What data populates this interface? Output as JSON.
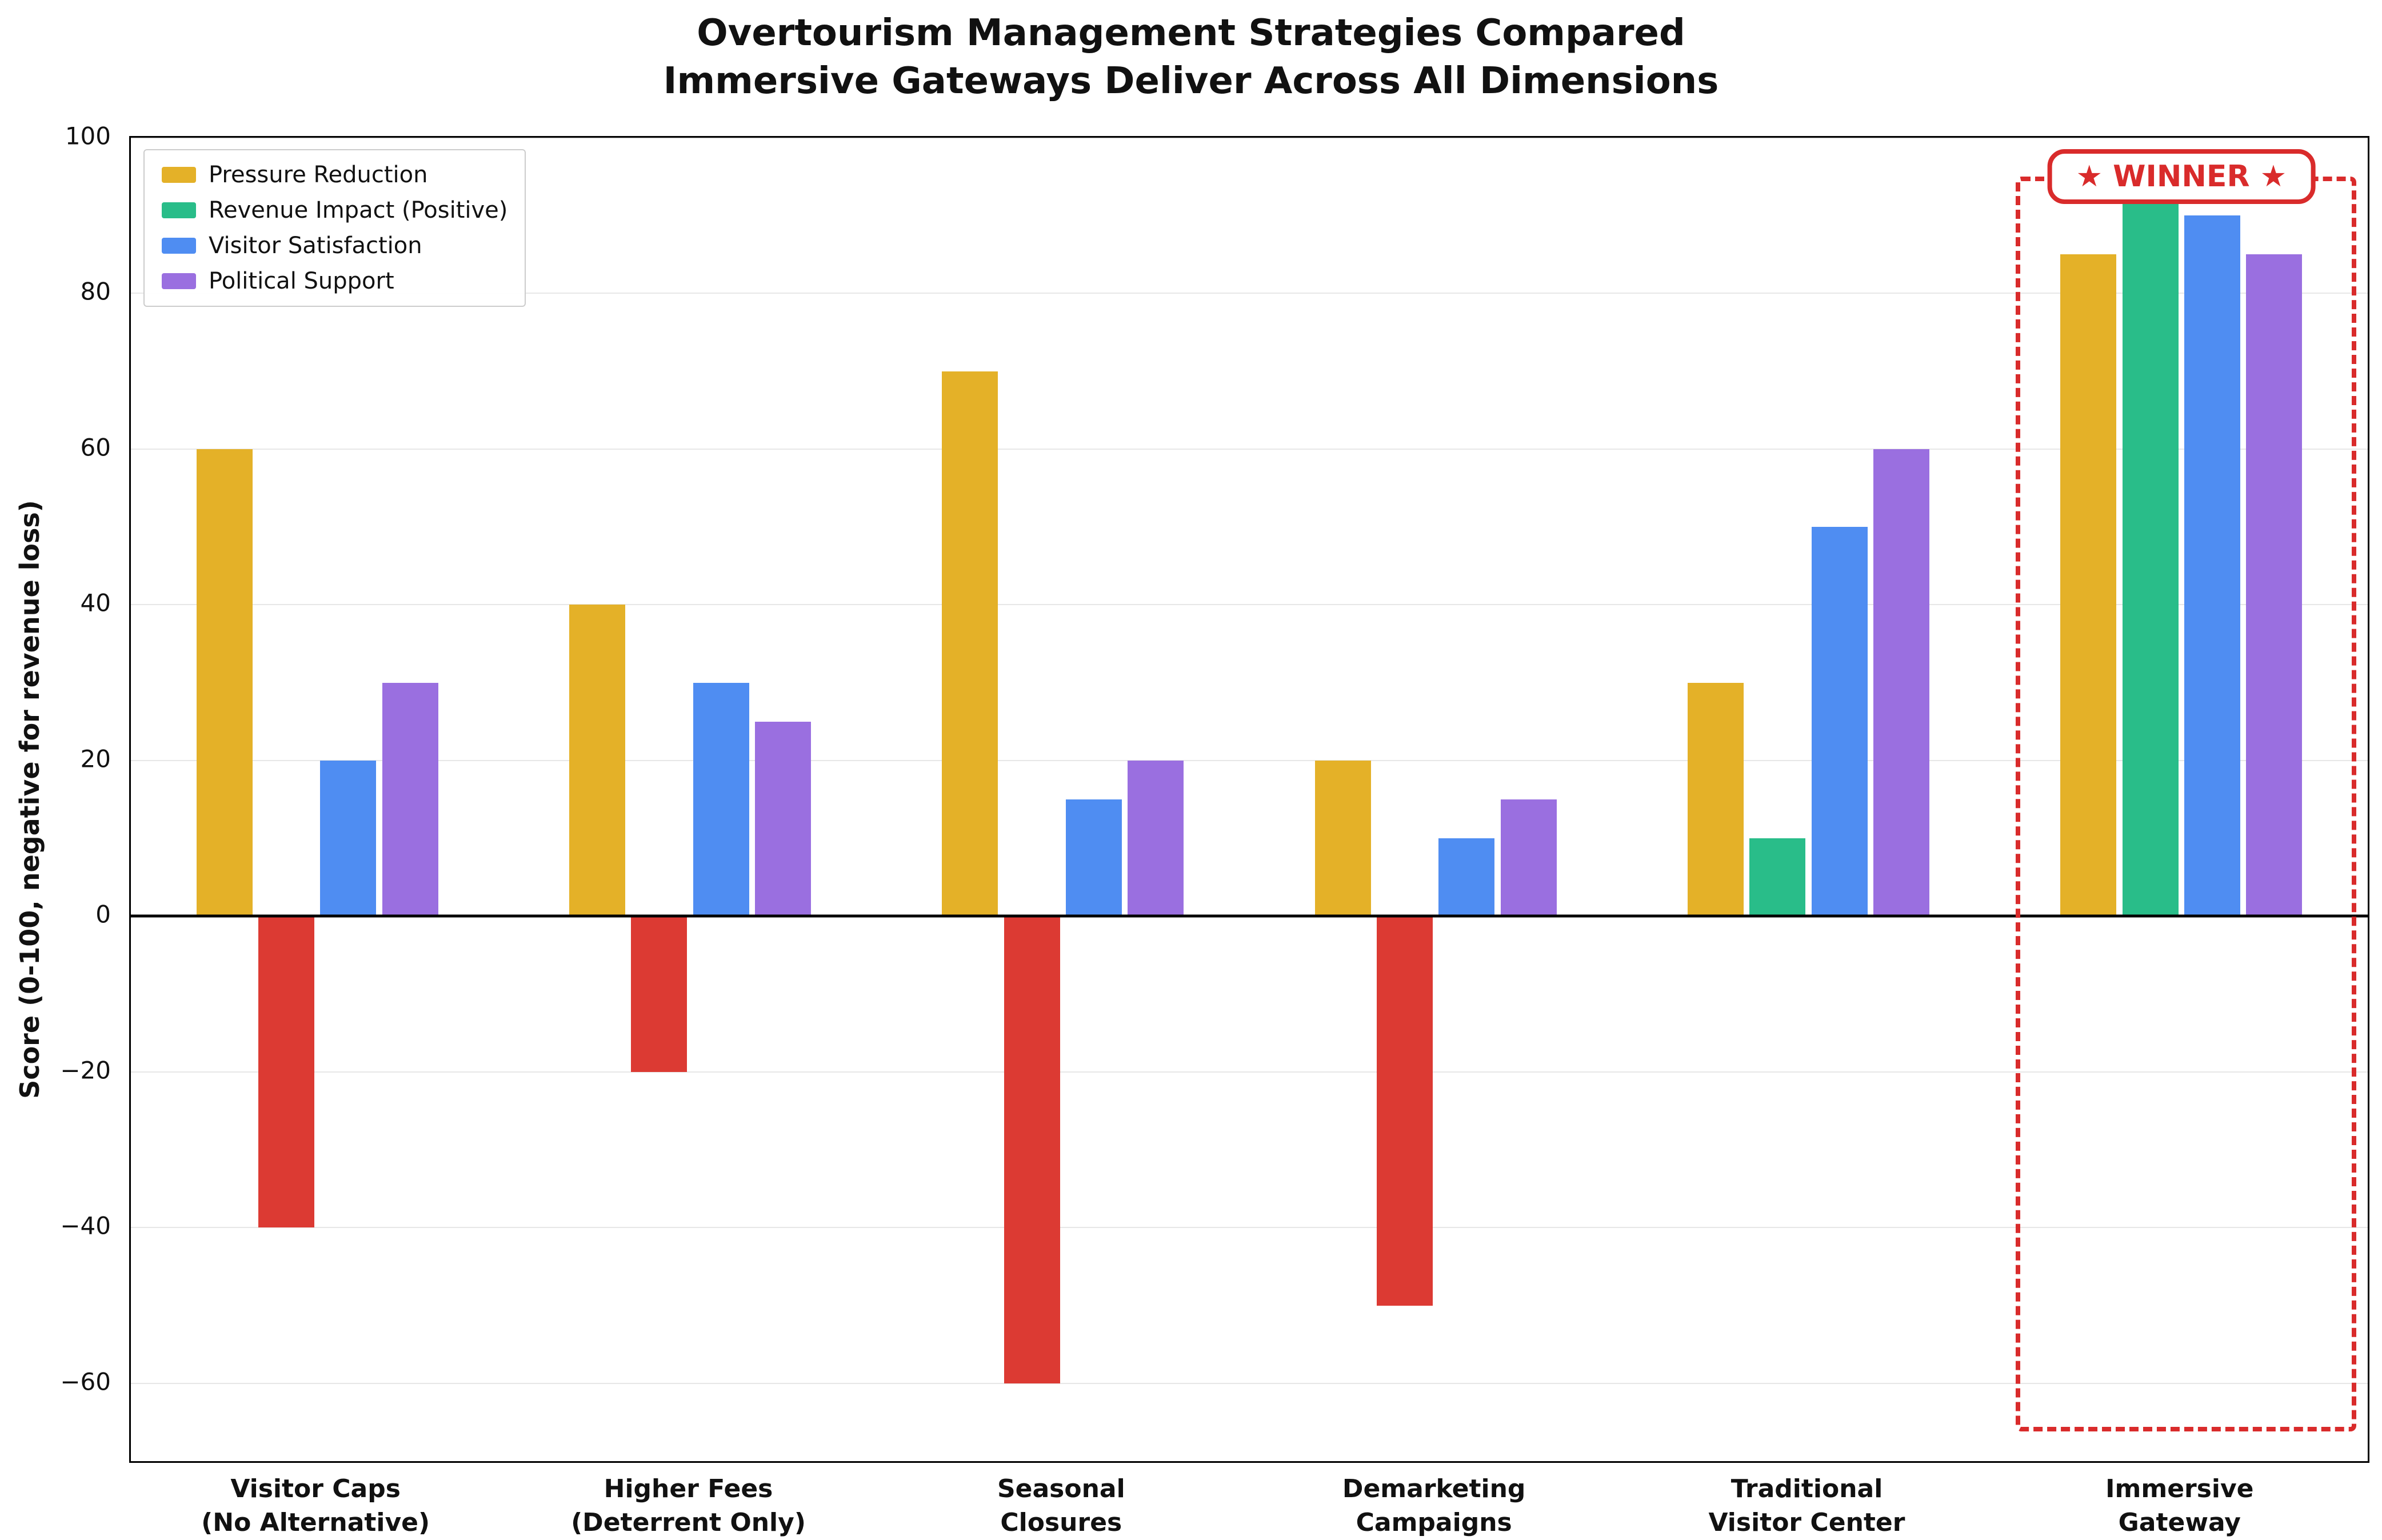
{
  "title": {
    "line1": "Overtourism Management Strategies Compared",
    "line2": "Immersive Gateways Deliver Across All Dimensions"
  },
  "chart_data": {
    "type": "bar",
    "categories": [
      [
        "Visitor Caps",
        "(No Alternative)"
      ],
      [
        "Higher Fees",
        "(Deterrent Only)"
      ],
      [
        "Seasonal",
        "Closures"
      ],
      [
        "Demarketing",
        "Campaigns"
      ],
      [
        "Traditional",
        "Visitor Center"
      ],
      [
        "Immersive",
        "Gateway"
      ]
    ],
    "series": [
      {
        "name": "Pressure Reduction",
        "color": "#e4b128",
        "values": [
          60,
          40,
          70,
          20,
          30,
          85
        ]
      },
      {
        "name": "Revenue Impact (Positive)",
        "color": "#29bd89",
        "negative_color": "#dc3a33",
        "values": [
          -40,
          -20,
          -60,
          -50,
          10,
          93
        ]
      },
      {
        "name": "Visitor Satisfaction",
        "color": "#4f8df2",
        "values": [
          20,
          30,
          15,
          10,
          50,
          90
        ]
      },
      {
        "name": "Political Support",
        "color": "#9a6fe0",
        "values": [
          30,
          25,
          20,
          15,
          60,
          85
        ]
      }
    ],
    "ylabel": "Score (0-100, negative for revenue loss)",
    "ylim": [
      -70,
      100
    ],
    "yticks": [
      -60,
      -40,
      -20,
      0,
      20,
      40,
      60,
      80,
      100
    ],
    "ytick_labels": [
      "−60",
      "−40",
      "−20",
      "0",
      "20",
      "40",
      "60",
      "80",
      "100"
    ],
    "grid": true,
    "legend_position": "upper left"
  },
  "annotations": {
    "winner_label": "★ WINNER ★",
    "winner_group_index": 5,
    "box_top_value": 95,
    "box_bottom_value": -65,
    "box_color": "#d92b2b"
  }
}
